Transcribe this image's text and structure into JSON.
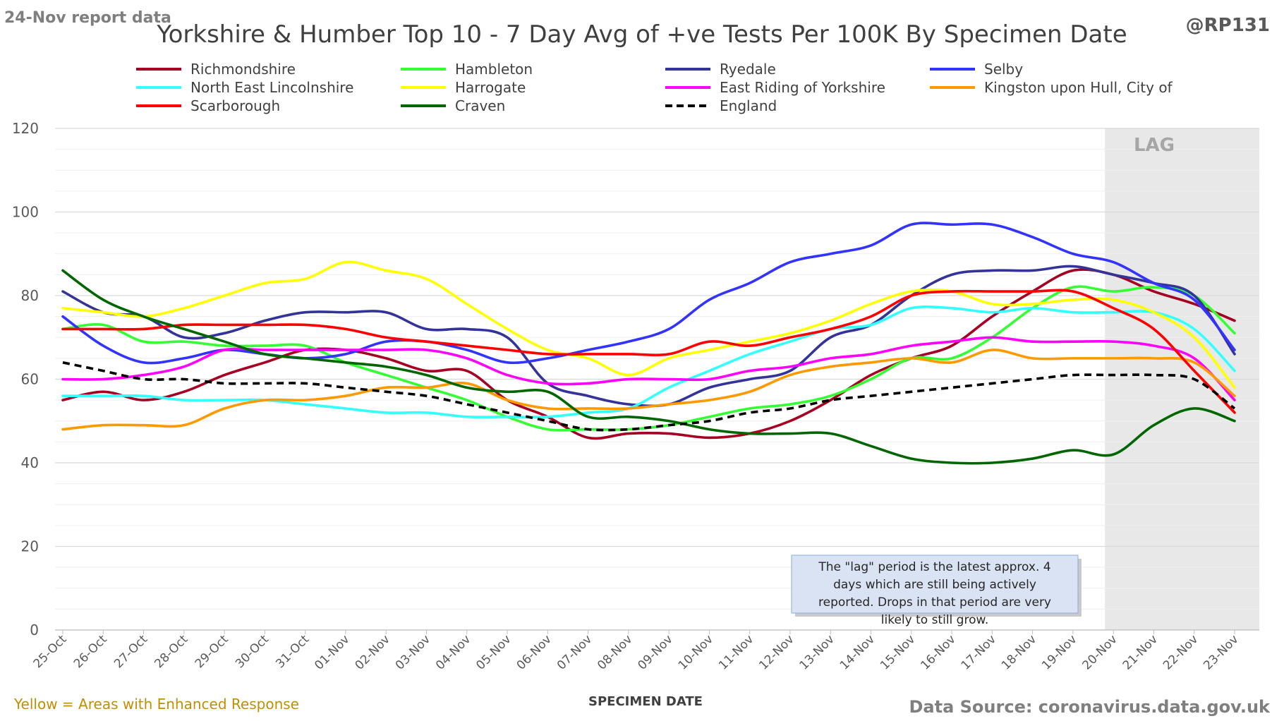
{
  "header": {
    "report_label": "24-Nov report data",
    "handle": "@RP131"
  },
  "footer": {
    "note": "Yellow = Areas with Enhanced Response",
    "source": "Data Source: coronavirus.data.gov.uk"
  },
  "colors": {
    "lag_shade": "#e8e8e8",
    "grid": "#d9d9d9",
    "axis_text": "#595959",
    "note_bg": "#dae3f3",
    "note_border": "#8faadc",
    "enhanced_note": "#bf9000",
    "header_grey": "#7f7f7f"
  },
  "chart_data": {
    "type": "line",
    "title": "Yorkshire & Humber Top 10 - 7 Day Avg of +ve Tests Per 100K By Specimen Date",
    "xlabel": "SPECIMEN DATE",
    "ylabel": "",
    "ylim": [
      0,
      120
    ],
    "yticks": [
      0,
      20,
      40,
      60,
      80,
      100,
      120
    ],
    "grid": true,
    "legend_position": "top",
    "categories": [
      "25-Oct",
      "26-Oct",
      "27-Oct",
      "28-Oct",
      "29-Oct",
      "30-Oct",
      "31-Oct",
      "01-Nov",
      "02-Nov",
      "03-Nov",
      "04-Nov",
      "05-Nov",
      "06-Nov",
      "07-Nov",
      "08-Nov",
      "09-Nov",
      "10-Nov",
      "11-Nov",
      "12-Nov",
      "13-Nov",
      "14-Nov",
      "15-Nov",
      "16-Nov",
      "17-Nov",
      "18-Nov",
      "19-Nov",
      "20-Nov",
      "21-Nov",
      "22-Nov",
      "23-Nov"
    ],
    "lag": {
      "label": "LAG",
      "start": "20-Nov",
      "end": "23-Nov"
    },
    "annotation": "The \"lag\" period is the latest approx. 4 days which are still being actively reported. Drops in that period are very likely to still grow.",
    "series": [
      {
        "name": "Richmondshire",
        "color": "#a50021",
        "dashed": false,
        "values": [
          55,
          57,
          55,
          57,
          61,
          64,
          67,
          67,
          65,
          62,
          62,
          55,
          51,
          46,
          47,
          47,
          46,
          47,
          50,
          55,
          61,
          65,
          68,
          75,
          81,
          86,
          85,
          81,
          78,
          74
        ]
      },
      {
        "name": "Hambleton",
        "color": "#33ff33",
        "dashed": false,
        "values": [
          72,
          73,
          69,
          69,
          68,
          68,
          68,
          64,
          61,
          58,
          55,
          51,
          48,
          48,
          48,
          49,
          51,
          53,
          54,
          56,
          60,
          65,
          65,
          70,
          77,
          82,
          81,
          82,
          80,
          71
        ]
      },
      {
        "name": "Ryedale",
        "color": "#333399",
        "dashed": false,
        "values": [
          81,
          76,
          75,
          70,
          71,
          74,
          76,
          76,
          76,
          72,
          72,
          70,
          59,
          56,
          54,
          54,
          58,
          60,
          62,
          70,
          73,
          80,
          85,
          86,
          86,
          87,
          85,
          83,
          80,
          66
        ]
      },
      {
        "name": "Selby",
        "color": "#3333ff",
        "dashed": false,
        "values": [
          75,
          68,
          64,
          65,
          67,
          66,
          65,
          66,
          69,
          69,
          67,
          64,
          65,
          67,
          69,
          72,
          79,
          83,
          88,
          90,
          92,
          97,
          97,
          97,
          94,
          90,
          88,
          83,
          79,
          67
        ]
      },
      {
        "name": "North East Lincolnshire",
        "color": "#33ffff",
        "dashed": false,
        "values": [
          56,
          56,
          56,
          55,
          55,
          55,
          54,
          53,
          52,
          52,
          51,
          51,
          51,
          52,
          53,
          58,
          62,
          66,
          69,
          72,
          73,
          77,
          77,
          76,
          77,
          76,
          76,
          76,
          72,
          62
        ]
      },
      {
        "name": "Harrogate",
        "color": "#ffff00",
        "dashed": false,
        "values": [
          77,
          76,
          75,
          77,
          80,
          83,
          84,
          88,
          86,
          84,
          78,
          72,
          67,
          65,
          61,
          65,
          67,
          69,
          71,
          74,
          78,
          81,
          81,
          78,
          78,
          79,
          79,
          76,
          70,
          58
        ]
      },
      {
        "name": "East Riding of Yorkshire",
        "color": "#ff00ff",
        "dashed": false,
        "values": [
          60,
          60,
          61,
          63,
          67,
          67,
          67,
          67,
          67,
          67,
          65,
          61,
          59,
          59,
          60,
          60,
          60,
          62,
          63,
          65,
          66,
          68,
          69,
          70,
          69,
          69,
          69,
          68,
          65,
          55
        ]
      },
      {
        "name": "Kingston upon Hull, City of",
        "color": "#ff9900",
        "dashed": false,
        "values": [
          48,
          49,
          49,
          49,
          53,
          55,
          55,
          56,
          58,
          58,
          59,
          55,
          53,
          53,
          53,
          54,
          55,
          57,
          61,
          63,
          64,
          65,
          64,
          67,
          65,
          65,
          65,
          65,
          64,
          56
        ]
      },
      {
        "name": "Scarborough",
        "color": "#ff0000",
        "dashed": false,
        "values": [
          72,
          72,
          72,
          73,
          73,
          73,
          73,
          72,
          70,
          69,
          68,
          67,
          66,
          66,
          66,
          66,
          69,
          68,
          70,
          72,
          75,
          80,
          81,
          81,
          81,
          81,
          77,
          72,
          62,
          52
        ]
      },
      {
        "name": "Craven",
        "color": "#006600",
        "dashed": false,
        "values": [
          86,
          79,
          75,
          72,
          69,
          66,
          65,
          64,
          63,
          61,
          58,
          57,
          57,
          51,
          51,
          50,
          48,
          47,
          47,
          47,
          44,
          41,
          40,
          40,
          41,
          43,
          42,
          49,
          53,
          50
        ]
      },
      {
        "name": "England",
        "color": "#000000",
        "dashed": true,
        "values": [
          64,
          62,
          60,
          60,
          59,
          59,
          59,
          58,
          57,
          56,
          54,
          52,
          50,
          48,
          48,
          49,
          50,
          52,
          53,
          55,
          56,
          57,
          58,
          59,
          60,
          61,
          61,
          61,
          60,
          53
        ]
      }
    ]
  }
}
